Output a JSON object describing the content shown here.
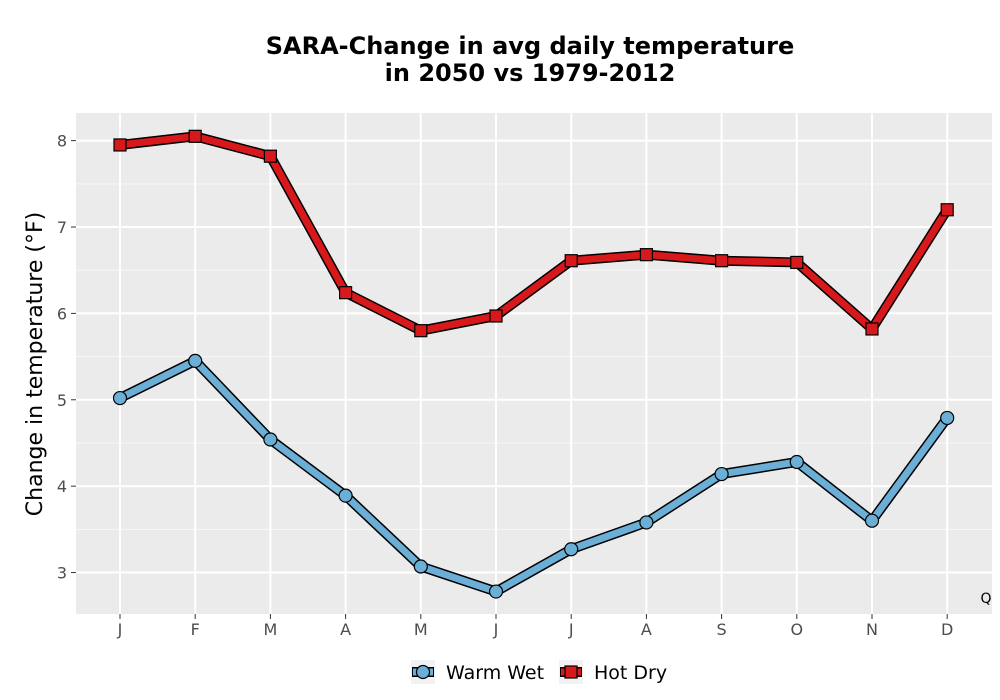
{
  "chart_data": {
    "type": "line",
    "title_line1": "SARA-Change in avg daily temperature",
    "title_line2": "in 2050 vs 1979-2012",
    "xlabel": "",
    "ylabel": "Change in temperature (°F)",
    "categories": [
      "J",
      "F",
      "M",
      "A",
      "M",
      "J",
      "J",
      "A",
      "S",
      "O",
      "N",
      "D"
    ],
    "ylim": [
      2.52,
      8.32
    ],
    "yticks": [
      3,
      4,
      5,
      6,
      7,
      8
    ],
    "grid": true,
    "legend_position": "bottom",
    "corner_note": "Q",
    "series": [
      {
        "name": "Warm Wet",
        "color": "#6baed6",
        "marker": "circle",
        "values": [
          5.02,
          5.45,
          4.54,
          3.89,
          3.07,
          2.78,
          3.27,
          3.58,
          4.14,
          4.28,
          3.6,
          4.79
        ]
      },
      {
        "name": "Hot Dry",
        "color": "#d7191c",
        "marker": "square",
        "values": [
          7.95,
          8.05,
          7.82,
          6.24,
          5.8,
          5.97,
          6.61,
          6.68,
          6.61,
          6.59,
          5.82,
          7.2
        ]
      }
    ]
  }
}
